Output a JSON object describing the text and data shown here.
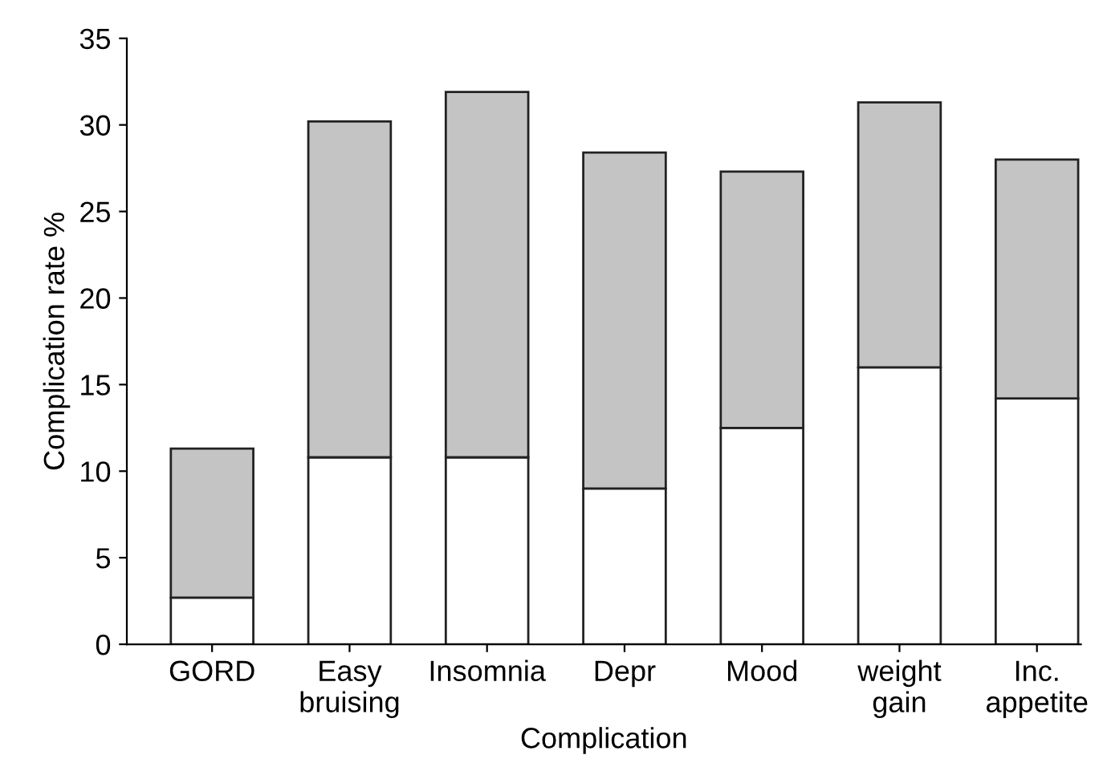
{
  "chart_data": {
    "type": "bar",
    "stacked": true,
    "xlabel": "Complication",
    "ylabel": "Complication rate %",
    "categories": [
      "GORD",
      "Easy\nbruising",
      "Insomnia",
      "Depr",
      "Mood",
      "weight\ngain",
      "Inc.\nappetite"
    ],
    "series": [
      {
        "color": "#ffffff",
        "values": [
          2.7,
          10.8,
          10.8,
          9.0,
          12.5,
          16.0,
          14.2
        ]
      },
      {
        "color": "#c4c4c4",
        "values": [
          8.6,
          19.4,
          21.1,
          19.4,
          14.8,
          15.3,
          13.8
        ]
      }
    ],
    "ylim": [
      0,
      35
    ],
    "yticks": [
      0,
      5,
      10,
      15,
      20,
      25,
      30,
      35
    ],
    "grid": false,
    "legend": false
  }
}
